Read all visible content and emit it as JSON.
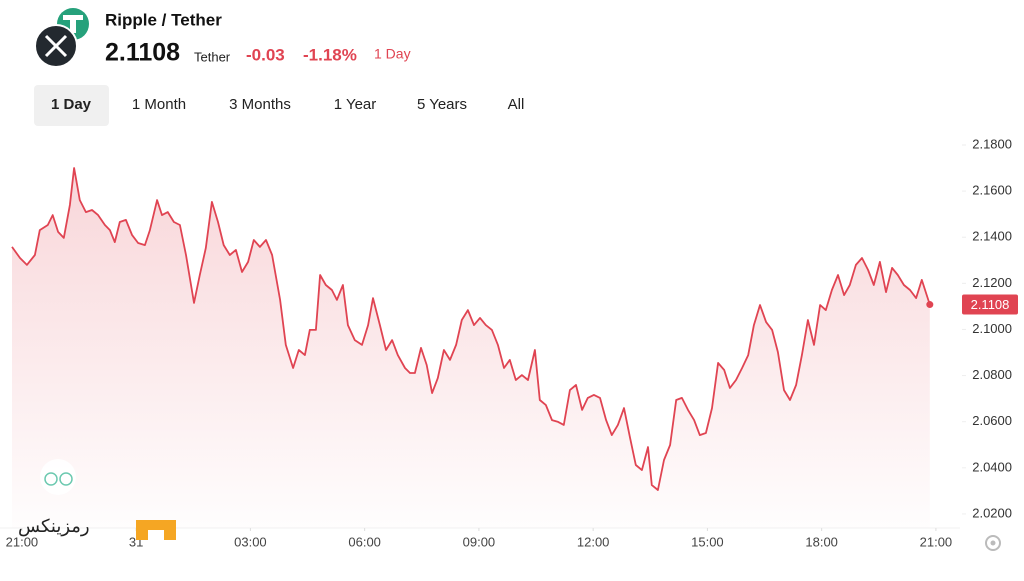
{
  "header": {
    "pair": "Ripple / Tether",
    "price": "2.1108",
    "unit": "Tether",
    "change": "-0.03",
    "change_pct": "-1.18%",
    "period": "1 Day"
  },
  "tabs": [
    "1 Day",
    "1 Month",
    "3 Months",
    "1 Year",
    "5 Years",
    "All"
  ],
  "watermark": "رمزینکس",
  "chart_data": {
    "type": "line",
    "color": "#e04452",
    "x": [
      -0.26,
      -0.05,
      0.13,
      0.34,
      0.47,
      0.68,
      0.81,
      0.95,
      1.1,
      1.26,
      1.37,
      1.52,
      1.68,
      1.84,
      2.0,
      2.18,
      2.31,
      2.44,
      2.57,
      2.73,
      2.89,
      3.05,
      3.23,
      3.36,
      3.55,
      3.68,
      3.83,
      3.99,
      4.15,
      4.31,
      4.52,
      4.67,
      4.83,
      4.99,
      5.15,
      5.3,
      5.46,
      5.62,
      5.78,
      5.94,
      6.09,
      6.25,
      6.41,
      6.57,
      6.78,
      6.93,
      7.12,
      7.27,
      7.43,
      7.56,
      7.72,
      7.83,
      7.98,
      8.14,
      8.27,
      8.43,
      8.56,
      8.74,
      8.93,
      9.09,
      9.22,
      9.4,
      9.56,
      9.72,
      9.87,
      10.06,
      10.19,
      10.32,
      10.48,
      10.63,
      10.77,
      10.92,
      11.08,
      11.24,
      11.4,
      11.55,
      11.71,
      11.87,
      12.03,
      12.18,
      12.34,
      12.5,
      12.66,
      12.81,
      12.97,
      13.13,
      13.29,
      13.47,
      13.6,
      13.76,
      13.92,
      14.08,
      14.23,
      14.39,
      14.55,
      14.71,
      14.86,
      15.02,
      15.18,
      15.34,
      15.49,
      15.65,
      15.81,
      15.97,
      16.12,
      16.28,
      16.44,
      16.54,
      16.7,
      16.86,
      17.02,
      17.18,
      17.33,
      17.49,
      17.65,
      17.8,
      17.96,
      18.12,
      18.28,
      18.44,
      18.59,
      18.75,
      18.91,
      19.07,
      19.22,
      19.38,
      19.54,
      19.7,
      19.85,
      20.01,
      20.17,
      20.33,
      20.48,
      20.64,
      20.8,
      20.96,
      21.11,
      21.27,
      21.43,
      21.59,
      21.74,
      21.9,
      22.06,
      22.22,
      22.37,
      22.53,
      22.69,
      22.85,
      23.0,
      23.16,
      23.32,
      23.48,
      23.63,
      23.84
    ],
    "values": [
      2.1358,
      2.131,
      2.128,
      2.1323,
      2.1431,
      2.1453,
      2.1496,
      2.1423,
      2.1397,
      2.154,
      2.17,
      2.1561,
      2.1509,
      2.1518,
      2.1496,
      2.1453,
      2.1431,
      2.1379,
      2.1466,
      2.1475,
      2.141,
      2.1375,
      2.1366,
      2.1431,
      2.1561,
      2.1496,
      2.1509,
      2.1466,
      2.1453,
      2.1323,
      2.1115,
      2.1236,
      2.1353,
      2.1553,
      2.1466,
      2.1366,
      2.1323,
      2.1345,
      2.1249,
      2.1293,
      2.1388,
      2.1358,
      2.1388,
      2.1323,
      2.1128,
      2.0933,
      2.0833,
      2.0911,
      2.0889,
      2.0998,
      2.0998,
      2.1236,
      2.1193,
      2.1171,
      2.1128,
      2.1193,
      2.1019,
      2.0954,
      2.0933,
      2.1019,
      2.1136,
      2.1019,
      2.0911,
      2.0954,
      2.0889,
      2.0833,
      2.0811,
      2.0811,
      2.092,
      2.0846,
      2.0724,
      2.0789,
      2.0911,
      2.0868,
      2.0933,
      2.1041,
      2.1084,
      2.1019,
      2.105,
      2.1019,
      2.0998,
      2.0933,
      2.0833,
      2.0868,
      2.0781,
      2.0802,
      2.0781,
      2.0911,
      2.0694,
      2.0672,
      2.0607,
      2.0599,
      2.0586,
      2.0737,
      2.0759,
      2.0651,
      2.0703,
      2.0716,
      2.0703,
      2.0607,
      2.0542,
      2.0586,
      2.0659,
      2.0529,
      2.0412,
      2.039,
      2.049,
      2.0325,
      2.0304,
      2.0434,
      2.0499,
      2.0694,
      2.0703,
      2.0651,
      2.0607,
      2.0542,
      2.0551,
      2.0659,
      2.0855,
      2.0824,
      2.0746,
      2.0781,
      2.0833,
      2.0889,
      2.1019,
      2.1106,
      2.1032,
      2.0998,
      2.0902,
      2.0737,
      2.0694,
      2.0759,
      2.0889,
      2.1041,
      2.0933,
      2.1106,
      2.1084,
      2.1171,
      2.1236,
      2.1149,
      2.1193,
      2.128,
      2.131,
      2.1258,
      2.1193,
      2.1293,
      2.1162,
      2.1267,
      2.1236,
      2.1193,
      2.1171,
      2.1136,
      2.1215,
      2.1108
    ],
    "xlim": [
      -0.26,
      24.37
    ],
    "xticks": [
      {
        "value": 0,
        "label": "21:00"
      },
      {
        "value": 3,
        "label": "31"
      },
      {
        "value": 6,
        "label": "03:00"
      },
      {
        "value": 9,
        "label": "06:00"
      },
      {
        "value": 12,
        "label": "09:00"
      },
      {
        "value": 15,
        "label": "12:00"
      },
      {
        "value": 18,
        "label": "15:00"
      },
      {
        "value": 21,
        "label": "18:00"
      },
      {
        "value": 24,
        "label": "21:00"
      }
    ],
    "ylim": [
      2.0139,
      2.1865
    ],
    "yticks": [
      {
        "value": 2.02,
        "label": "2.0200"
      },
      {
        "value": 2.04,
        "label": "2.0400"
      },
      {
        "value": 2.06,
        "label": "2.0600"
      },
      {
        "value": 2.08,
        "label": "2.0800"
      },
      {
        "value": 2.1,
        "label": "2.1000"
      },
      {
        "value": 2.12,
        "label": "2.1200"
      },
      {
        "value": 2.14,
        "label": "2.1400"
      },
      {
        "value": 2.16,
        "label": "2.1600"
      },
      {
        "value": 2.18,
        "label": "2.1800"
      }
    ]
  }
}
